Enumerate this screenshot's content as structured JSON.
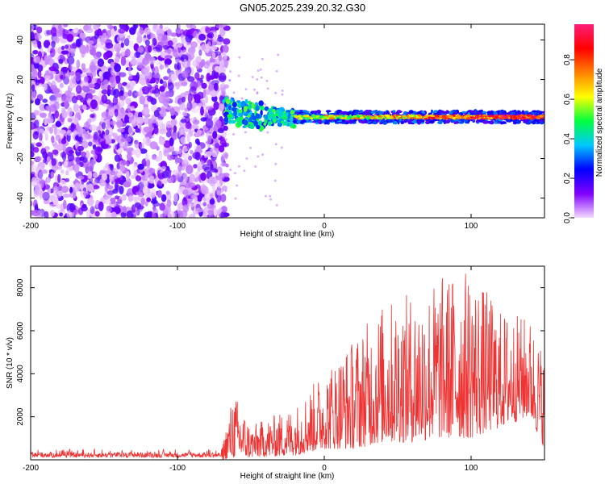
{
  "title": "GN05.2025.239.20.32.G30",
  "chart_data": [
    {
      "type": "heatmap",
      "name": "spectrogram",
      "xlabel": "Height of straight line (km)",
      "ylabel": "Frequency (Hz)",
      "xlim": [
        -200,
        150
      ],
      "ylim": [
        -50,
        48
      ],
      "xticks": [
        -200,
        -100,
        0,
        100
      ],
      "xtick_labels": [
        "-200",
        "-100",
        "0",
        "100"
      ],
      "yticks": [
        -40,
        -20,
        0,
        20,
        40
      ],
      "ytick_labels": [
        "-40",
        "-20",
        "0",
        "20",
        "40"
      ],
      "colorbar": {
        "label": "Normalized spectral amplitude",
        "range": [
          0,
          0.98
        ],
        "ticks": [
          0,
          0.2,
          0.4,
          0.6,
          0.8
        ],
        "tick_labels": [
          "0.0",
          "0.2",
          "0.4",
          "0.6",
          "0.8"
        ],
        "colors": [
          "#f4d9ff",
          "#8000ff",
          "#0000ff",
          "#00c8ff",
          "#00ff40",
          "#ffff00",
          "#ff8000",
          "#ff0000",
          "#ff1f7a"
        ]
      },
      "regions": [
        {
          "name": "broadband noise",
          "x_range": [
            -200,
            -68
          ],
          "y_range": [
            -50,
            48
          ],
          "level": 0.15
        },
        {
          "name": "onset",
          "x_range": [
            -68,
            -20
          ],
          "y_range": [
            -5,
            12
          ],
          "level": 0.45
        },
        {
          "name": "narrowband carrier",
          "x_range": [
            -20,
            150
          ],
          "y_center": 1,
          "level": 0.9
        }
      ]
    },
    {
      "type": "line",
      "name": "snr",
      "xlabel": "Height of straight line (km)",
      "ylabel": "SNR (10 * v/v)",
      "xlim": [
        -200,
        150
      ],
      "ylim": [
        0,
        9000
      ],
      "xticks": [
        -200,
        -100,
        0,
        100
      ],
      "xtick_labels": [
        "-200",
        "-100",
        "0",
        "100"
      ],
      "yticks": [
        2000,
        4000,
        6000,
        8000
      ],
      "ytick_labels": [
        "2000",
        "4000",
        "6000",
        "8000"
      ],
      "color": "#ee3333",
      "envelope": [
        {
          "x": -200,
          "low": 0,
          "high": 500
        },
        {
          "x": -70,
          "low": 0,
          "high": 500
        },
        {
          "x": -62,
          "low": 100,
          "high": 3200
        },
        {
          "x": -50,
          "low": 100,
          "high": 1600
        },
        {
          "x": -20,
          "low": 200,
          "high": 2500
        },
        {
          "x": 0,
          "low": 500,
          "high": 4200
        },
        {
          "x": 20,
          "low": 500,
          "high": 5700
        },
        {
          "x": 40,
          "low": 800,
          "high": 7300
        },
        {
          "x": 60,
          "low": 800,
          "high": 7800
        },
        {
          "x": 80,
          "low": 1000,
          "high": 8600
        },
        {
          "x": 100,
          "low": 1000,
          "high": 8900
        },
        {
          "x": 120,
          "low": 1500,
          "high": 7000
        },
        {
          "x": 140,
          "low": 2000,
          "high": 6600
        },
        {
          "x": 150,
          "low": 500,
          "high": 5000
        }
      ]
    }
  ]
}
